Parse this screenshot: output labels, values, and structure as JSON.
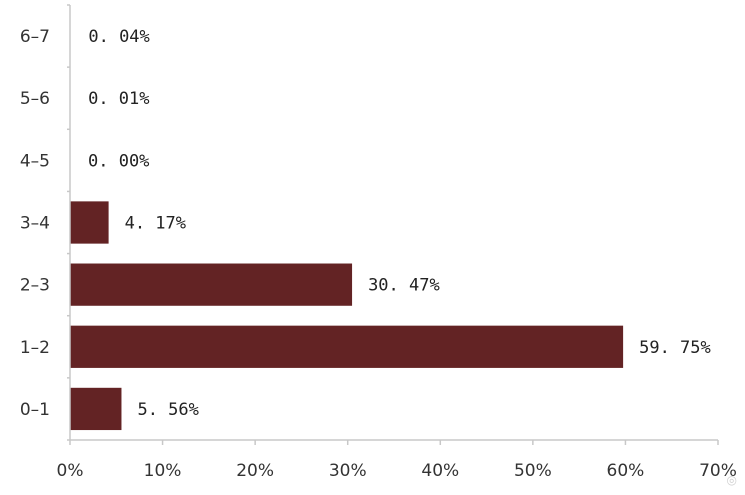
{
  "chart_data": {
    "type": "bar",
    "orientation": "horizontal",
    "categories": [
      "0-1",
      "1-2",
      "2-3",
      "3-4",
      "4-5",
      "5-6",
      "6-7"
    ],
    "category_display": [
      "0–1",
      "1–2",
      "2–3",
      "3–4",
      "4–5",
      "5–6",
      "6–7"
    ],
    "values": [
      5.56,
      59.75,
      30.47,
      4.17,
      0.0,
      0.01,
      0.04
    ],
    "value_labels": [
      "5. 56%",
      "59. 75%",
      "30. 47%",
      "4. 17%",
      "0. 00%",
      "0. 01%",
      "0. 04%"
    ],
    "xlim": [
      0,
      70
    ],
    "x_ticks": [
      "0%",
      "10%",
      "20%",
      "30%",
      "40%",
      "50%",
      "60%",
      "70%"
    ],
    "title": "",
    "xlabel": "",
    "ylabel": "",
    "grid": false,
    "bar_color": "#632324"
  }
}
